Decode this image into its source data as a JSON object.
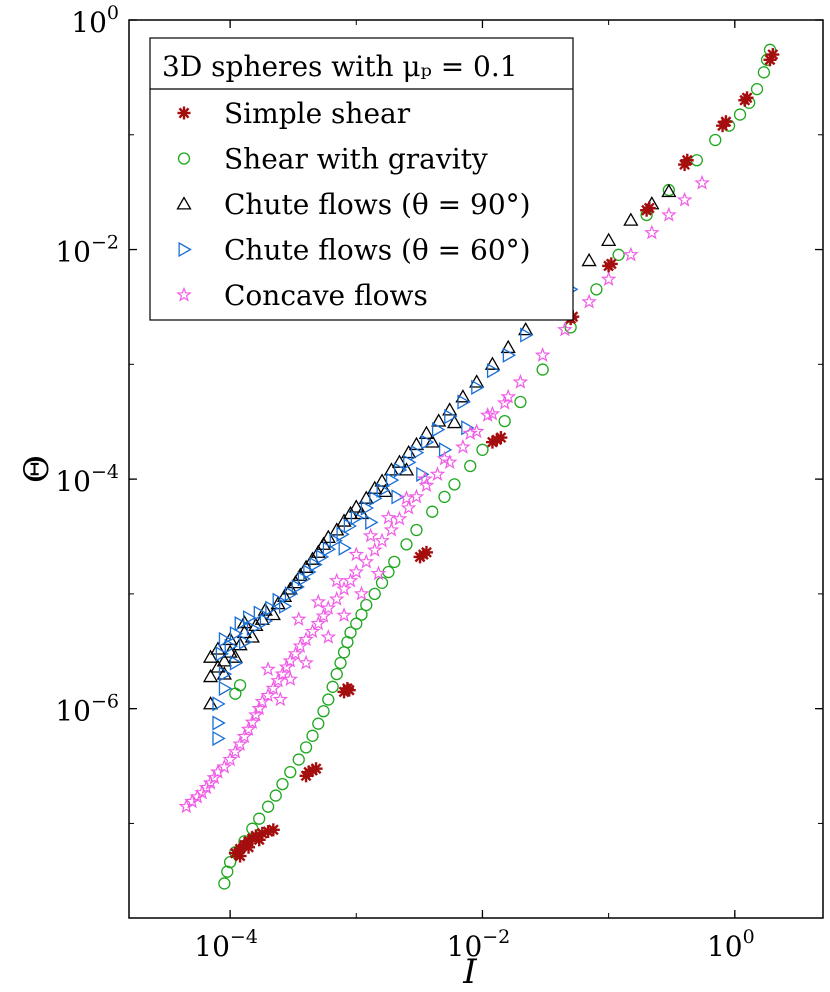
{
  "chart_data": {
    "type": "scatter",
    "xscale": "log",
    "yscale": "log",
    "xlim": [
      1.58e-05,
      5.0
    ],
    "ylim": [
      1.5e-08,
      1.0
    ],
    "xlabel": "I",
    "ylabel": "Θ",
    "x_ticks": [
      {
        "value": 0.0001,
        "base": "10",
        "exp": "−4"
      },
      {
        "value": 0.01,
        "base": "10",
        "exp": "−2"
      },
      {
        "value": 1,
        "base": "10",
        "exp": "0"
      }
    ],
    "y_ticks": [
      {
        "value": 1e-06,
        "base": "10",
        "exp": "−6"
      },
      {
        "value": 0.0001,
        "base": "10",
        "exp": "−4"
      },
      {
        "value": 0.01,
        "base": "10",
        "exp": "−2"
      },
      {
        "value": 1,
        "base": "10",
        "exp": "0"
      }
    ],
    "legend_title": "3D spheres with μₚ = 0.1",
    "legend_position": "top-left",
    "series": [
      {
        "name": "Simple shear",
        "marker": "asterisk",
        "color": "#a50e0e",
        "points": [
          [
            0.00011,
            5.5e-08
          ],
          [
            0.00012,
            6e-08
          ],
          [
            0.00013,
            6.5e-08
          ],
          [
            0.00014,
            7e-08
          ],
          [
            0.00015,
            7.4e-08
          ],
          [
            0.00016,
            7.8e-08
          ],
          [
            0.00018,
            8.2e-08
          ],
          [
            0.0002,
            8.5e-08
          ],
          [
            0.00022,
            8.8e-08
          ],
          [
            0.00012,
            5.2e-08
          ],
          [
            0.00014,
            6.2e-08
          ],
          [
            0.00017,
            7.2e-08
          ],
          [
            0.0004,
            2.6e-07
          ],
          [
            0.00042,
            2.8e-07
          ],
          [
            0.00045,
            2.9e-07
          ],
          [
            0.00048,
            3e-07
          ],
          [
            0.0008,
            1.4e-06
          ],
          [
            0.00085,
            1.5e-06
          ],
          [
            0.00088,
            1.45e-06
          ],
          [
            0.0032,
            2.1e-05
          ],
          [
            0.0034,
            2.2e-05
          ],
          [
            0.0036,
            2.3e-05
          ],
          [
            0.012,
            0.00021
          ],
          [
            0.013,
            0.00022
          ],
          [
            0.014,
            0.00023
          ],
          [
            0.05,
            0.0025
          ],
          [
            0.052,
            0.0026
          ],
          [
            0.1,
            0.0072
          ],
          [
            0.105,
            0.0075
          ],
          [
            0.2,
            0.022
          ],
          [
            0.21,
            0.023
          ],
          [
            0.4,
            0.055
          ],
          [
            0.42,
            0.06
          ],
          [
            0.8,
            0.12
          ],
          [
            0.85,
            0.13
          ],
          [
            1.2,
            0.2
          ],
          [
            1.25,
            0.21
          ],
          [
            1.9,
            0.45
          ],
          [
            2.0,
            0.5
          ]
        ]
      },
      {
        "name": "Shear with gravity",
        "marker": "circle",
        "color": "#1fa81f",
        "points": [
          [
            9e-05,
            3e-08
          ],
          [
            9.5e-05,
            3.8e-08
          ],
          [
            0.0001,
            4.6e-08
          ],
          [
            0.00011,
            5.6e-08
          ],
          [
            0.00013,
            7e-08
          ],
          [
            0.00015,
            9e-08
          ],
          [
            0.00017,
            1.1e-07
          ],
          [
            0.0002,
            1.4e-07
          ],
          [
            0.00023,
            1.75e-07
          ],
          [
            0.00026,
            2.2e-07
          ],
          [
            0.0003,
            2.8e-07
          ],
          [
            0.00035,
            3.6e-07
          ],
          [
            0.0004,
            4.6e-07
          ],
          [
            0.00045,
            5.8e-07
          ],
          [
            0.0005,
            7.4e-07
          ],
          [
            0.00055,
            9.5e-07
          ],
          [
            0.0006,
            1.2e-06
          ],
          [
            0.00065,
            1.55e-06
          ],
          [
            0.0007,
            2e-06
          ],
          [
            0.00075,
            2.5e-06
          ],
          [
            0.0008,
            3.1e-06
          ],
          [
            0.00085,
            3.8e-06
          ],
          [
            0.0009,
            4.6e-06
          ],
          [
            0.001,
            5.5e-06
          ],
          [
            0.0011,
            6.6e-06
          ],
          [
            0.0012,
            8e-06
          ],
          [
            0.0014,
            1e-05
          ],
          [
            0.0016,
            1.25e-05
          ],
          [
            0.0018,
            1.55e-05
          ],
          [
            0.002,
            1.9e-05
          ],
          [
            0.0025,
            2.7e-05
          ],
          [
            0.003,
            3.6e-05
          ],
          [
            0.004,
            5.2e-05
          ],
          [
            0.005,
            7e-05
          ],
          [
            0.006,
            9e-05
          ],
          [
            0.008,
            0.00013
          ],
          [
            0.01,
            0.00018
          ],
          [
            0.015,
            0.00032
          ],
          [
            0.02,
            0.00047
          ],
          [
            0.03,
            0.0009
          ],
          [
            0.05,
            0.0021
          ],
          [
            0.08,
            0.0045
          ],
          [
            0.12,
            0.009
          ],
          [
            0.2,
            0.02
          ],
          [
            0.3,
            0.033
          ],
          [
            0.5,
            0.06
          ],
          [
            0.7,
            0.09
          ],
          [
            0.9,
            0.12
          ],
          [
            1.1,
            0.15
          ],
          [
            1.3,
            0.19
          ],
          [
            1.5,
            0.25
          ],
          [
            1.7,
            0.35
          ],
          [
            1.8,
            0.45
          ],
          [
            1.9,
            0.55
          ],
          [
            0.00012,
            1.6e-06
          ],
          [
            0.00011,
            1.35e-06
          ]
        ]
      },
      {
        "name": "Chute flows (θ = 90°)",
        "marker": "triangle-up",
        "color": "#000000",
        "points": [
          [
            7e-05,
            1.1e-06
          ],
          [
            7e-05,
            1.9e-06
          ],
          [
            7e-05,
            2.8e-06
          ],
          [
            8e-05,
            2.3e-06
          ],
          [
            8e-05,
            3.3e-06
          ],
          [
            9e-05,
            2e-06
          ],
          [
            9e-05,
            2.6e-06
          ],
          [
            0.0001,
            3.1e-06
          ],
          [
            0.0001,
            4e-06
          ],
          [
            0.00011,
            2.8e-06
          ],
          [
            0.00012,
            3.6e-06
          ],
          [
            0.00013,
            4.6e-06
          ],
          [
            0.00013,
            5.6e-06
          ],
          [
            0.00015,
            4.2e-06
          ],
          [
            0.00016,
            5.3e-06
          ],
          [
            0.00018,
            6e-06
          ],
          [
            0.00019,
            7.2e-06
          ],
          [
            0.00022,
            6.6e-06
          ],
          [
            0.00024,
            8.2e-06
          ],
          [
            0.00027,
            9.5e-06
          ],
          [
            0.0003,
            1.1e-05
          ],
          [
            0.00033,
            1.25e-05
          ],
          [
            0.00036,
            1.45e-05
          ],
          [
            0.0004,
            1.7e-05
          ],
          [
            0.00045,
            2e-05
          ],
          [
            0.0005,
            2.3e-05
          ],
          [
            0.00055,
            2.7e-05
          ],
          [
            0.0006,
            3.1e-05
          ],
          [
            0.0007,
            3.6e-05
          ],
          [
            0.0008,
            4.3e-05
          ],
          [
            0.0009,
            5e-05
          ],
          [
            0.001,
            5.7e-05
          ],
          [
            0.0012,
            6.8e-05
          ],
          [
            0.0014,
            8.3e-05
          ],
          [
            0.0016,
            9.6e-05
          ],
          [
            0.0019,
            0.00012
          ],
          [
            0.0022,
            0.00014
          ],
          [
            0.0026,
            0.00017
          ],
          [
            0.003,
            0.0002
          ],
          [
            0.0036,
            0.00025
          ],
          [
            0.0045,
            0.00032
          ],
          [
            0.0055,
            0.0004
          ],
          [
            0.007,
            0.00052
          ],
          [
            0.009,
            0.0007
          ],
          [
            0.012,
            0.001
          ],
          [
            0.016,
            0.0014
          ],
          [
            0.022,
            0.002
          ],
          [
            0.03,
            0.003
          ],
          [
            0.045,
            0.0048
          ],
          [
            0.07,
            0.008
          ],
          [
            0.1,
            0.012
          ],
          [
            0.15,
            0.018
          ],
          [
            0.22,
            0.025
          ],
          [
            0.3,
            0.032
          ],
          [
            0.0025,
            0.00012
          ],
          [
            0.004,
            0.00021
          ],
          [
            0.006,
            0.00031
          ],
          [
            0.0011,
            5e-05
          ],
          [
            0.0017,
            7.8e-05
          ]
        ]
      },
      {
        "name": "Chute flows (θ = 60°)",
        "marker": "triangle-right",
        "color": "#1a6fd6",
        "points": [
          [
            8e-05,
            5.5e-07
          ],
          [
            8e-05,
            7.5e-07
          ],
          [
            8e-05,
            1.1e-06
          ],
          [
            9e-05,
            1.5e-06
          ],
          [
            9e-05,
            2e-06
          ],
          [
            8.5e-05,
            3e-06
          ],
          [
            9e-05,
            4e-06
          ],
          [
            0.0001,
            3.5e-06
          ],
          [
            0.00011,
            4.5e-06
          ],
          [
            0.00011,
            2.5e-06
          ],
          [
            0.00012,
            5.5e-06
          ],
          [
            0.00013,
            3.8e-06
          ],
          [
            0.00014,
            6.2e-06
          ],
          [
            0.00015,
            5e-06
          ],
          [
            0.00017,
            6.8e-06
          ],
          [
            0.00019,
            5.8e-06
          ],
          [
            0.00021,
            7.5e-06
          ],
          [
            0.00024,
            8.8e-06
          ],
          [
            0.00027,
            7.8e-06
          ],
          [
            0.0003,
            1e-05
          ],
          [
            0.00034,
            1.15e-05
          ],
          [
            0.00038,
            1.35e-05
          ],
          [
            0.00042,
            1.55e-05
          ],
          [
            0.00047,
            1.8e-05
          ],
          [
            0.00053,
            2.1e-05
          ],
          [
            0.0006,
            2.45e-05
          ],
          [
            0.00068,
            2.9e-05
          ],
          [
            0.00077,
            3.3e-05
          ],
          [
            0.00088,
            3.9e-05
          ],
          [
            0.001,
            4.6e-05
          ],
          [
            0.0012,
            5.6e-05
          ],
          [
            0.0014,
            6.8e-05
          ],
          [
            0.0016,
            8e-05
          ],
          [
            0.0019,
            9.8e-05
          ],
          [
            0.0022,
            0.00012
          ],
          [
            0.0026,
            0.00014
          ],
          [
            0.003,
            0.00017
          ],
          [
            0.0036,
            0.00021
          ],
          [
            0.0044,
            0.00027
          ],
          [
            0.0055,
            0.00035
          ],
          [
            0.007,
            0.00047
          ],
          [
            0.009,
            0.00063
          ],
          [
            0.012,
            0.00088
          ],
          [
            0.016,
            0.0012
          ],
          [
            0.022,
            0.0018
          ],
          [
            0.032,
            0.0028
          ],
          [
            0.05,
            0.0045
          ],
          [
            0.0008,
            2.5e-05
          ],
          [
            0.0013,
            4.2e-05
          ],
          [
            0.0021,
            7e-05
          ],
          [
            0.0033,
            0.00011
          ],
          [
            0.005,
            0.00018
          ],
          [
            0.0075,
            0.00028
          ]
        ]
      },
      {
        "name": "Concave flows",
        "marker": "pentagram",
        "color": "#f05ce6",
        "points": [
          [
            4.5e-05,
            1.4e-07
          ],
          [
            5e-05,
            1.55e-07
          ],
          [
            5.5e-05,
            1.7e-07
          ],
          [
            6e-05,
            1.85e-07
          ],
          [
            6.5e-05,
            2.05e-07
          ],
          [
            7e-05,
            2.25e-07
          ],
          [
            7.5e-05,
            2.5e-07
          ],
          [
            8e-05,
            2.8e-07
          ],
          [
            9e-05,
            3.1e-07
          ],
          [
            0.0001,
            3.6e-07
          ],
          [
            0.00011,
            4.2e-07
          ],
          [
            0.00012,
            4.9e-07
          ],
          [
            0.00013,
            5.7e-07
          ],
          [
            0.00014,
            6.6e-07
          ],
          [
            0.00015,
            7.6e-07
          ],
          [
            0.00016,
            8.8e-07
          ],
          [
            0.00017,
            1e-06
          ],
          [
            0.00018,
            1.15e-06
          ],
          [
            0.0002,
            1.3e-06
          ],
          [
            0.00022,
            1.5e-06
          ],
          [
            0.00024,
            1.75e-06
          ],
          [
            0.00026,
            2e-06
          ],
          [
            0.00028,
            2.3e-06
          ],
          [
            0.0003,
            2.6e-06
          ],
          [
            0.00033,
            3e-06
          ],
          [
            0.00036,
            3.5e-06
          ],
          [
            0.0004,
            4e-06
          ],
          [
            0.00045,
            4.7e-06
          ],
          [
            0.0005,
            5.5e-06
          ],
          [
            0.00055,
            6.4e-06
          ],
          [
            0.0006,
            7.5e-06
          ],
          [
            0.0007,
            9e-06
          ],
          [
            0.0008,
            1.1e-05
          ],
          [
            0.0009,
            1.3e-05
          ],
          [
            0.001,
            1.55e-05
          ],
          [
            0.0012,
            1.9e-05
          ],
          [
            0.0014,
            2.4e-05
          ],
          [
            0.0016,
            2.9e-05
          ],
          [
            0.0019,
            3.6e-05
          ],
          [
            0.0022,
            4.5e-05
          ],
          [
            0.0026,
            5.6e-05
          ],
          [
            0.003,
            7e-05
          ],
          [
            0.0036,
            8.8e-05
          ],
          [
            0.0044,
            0.00011
          ],
          [
            0.0055,
            0.00014
          ],
          [
            0.007,
            0.00019
          ],
          [
            0.009,
            0.00026
          ],
          [
            0.012,
            0.00037
          ],
          [
            0.016,
            0.00052
          ],
          [
            0.02,
            0.0007
          ],
          [
            0.03,
            0.0012
          ],
          [
            0.045,
            0.002
          ],
          [
            0.07,
            0.0035
          ],
          [
            0.1,
            0.0055
          ],
          [
            0.15,
            0.009
          ],
          [
            0.22,
            0.014
          ],
          [
            0.3,
            0.02
          ],
          [
            0.4,
            0.027
          ],
          [
            0.55,
            0.038
          ],
          [
            0.0003,
            1.8e-06
          ],
          [
            0.0004,
            2.5e-06
          ],
          [
            0.0006,
            4.2e-06
          ],
          [
            0.0008,
            6.5e-06
          ],
          [
            0.0011,
            1e-05
          ],
          [
            0.0015,
            1.5e-05
          ],
          [
            0.0002,
            2.2e-06
          ],
          [
            0.00025,
            1.2e-06
          ],
          [
            0.00035,
            6e-06
          ],
          [
            0.0005,
            8.5e-06
          ],
          [
            0.0007,
            1.3e-05
          ],
          [
            0.001,
            2.2e-05
          ],
          [
            0.0013,
            3.2e-05
          ],
          [
            0.0018,
            4.6e-05
          ],
          [
            0.0025,
            6.8e-05
          ],
          [
            0.0035,
            0.0001
          ],
          [
            0.005,
            0.00015
          ],
          [
            0.008,
            0.00025
          ],
          [
            0.011,
            0.00036
          ],
          [
            0.015,
            0.00046
          ]
        ]
      }
    ]
  }
}
